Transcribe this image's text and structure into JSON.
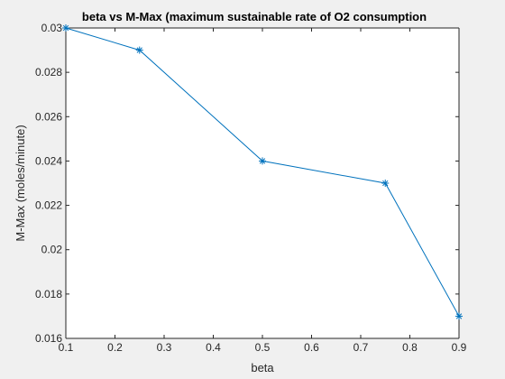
{
  "chart_data": {
    "type": "line",
    "title": "beta vs M-Max (maximum sustainable rate of O2 consumption",
    "xlabel": "beta",
    "ylabel": "M-Max (moles/minute)",
    "xlim": [
      0.1,
      0.9
    ],
    "ylim": [
      0.016,
      0.03
    ],
    "xticks": [
      0.1,
      0.2,
      0.3,
      0.4,
      0.5,
      0.6,
      0.7,
      0.8,
      0.9
    ],
    "xtick_labels": [
      "0.1",
      "0.2",
      "0.3",
      "0.4",
      "0.5",
      "0.6",
      "0.7",
      "0.8",
      "0.9"
    ],
    "yticks": [
      0.016,
      0.018,
      0.02,
      0.022,
      0.024,
      0.026,
      0.028,
      0.03
    ],
    "ytick_labels": [
      "0.016",
      "0.018",
      "0.02",
      "0.022",
      "0.024",
      "0.026",
      "0.028",
      "0.03"
    ],
    "grid": false,
    "series": [
      {
        "x": [
          0.1,
          0.25,
          0.5,
          0.75,
          0.9
        ],
        "y": [
          0.03,
          0.029,
          0.024,
          0.023,
          0.017
        ],
        "color": "#0072bd",
        "marker": "asterisk"
      }
    ]
  }
}
